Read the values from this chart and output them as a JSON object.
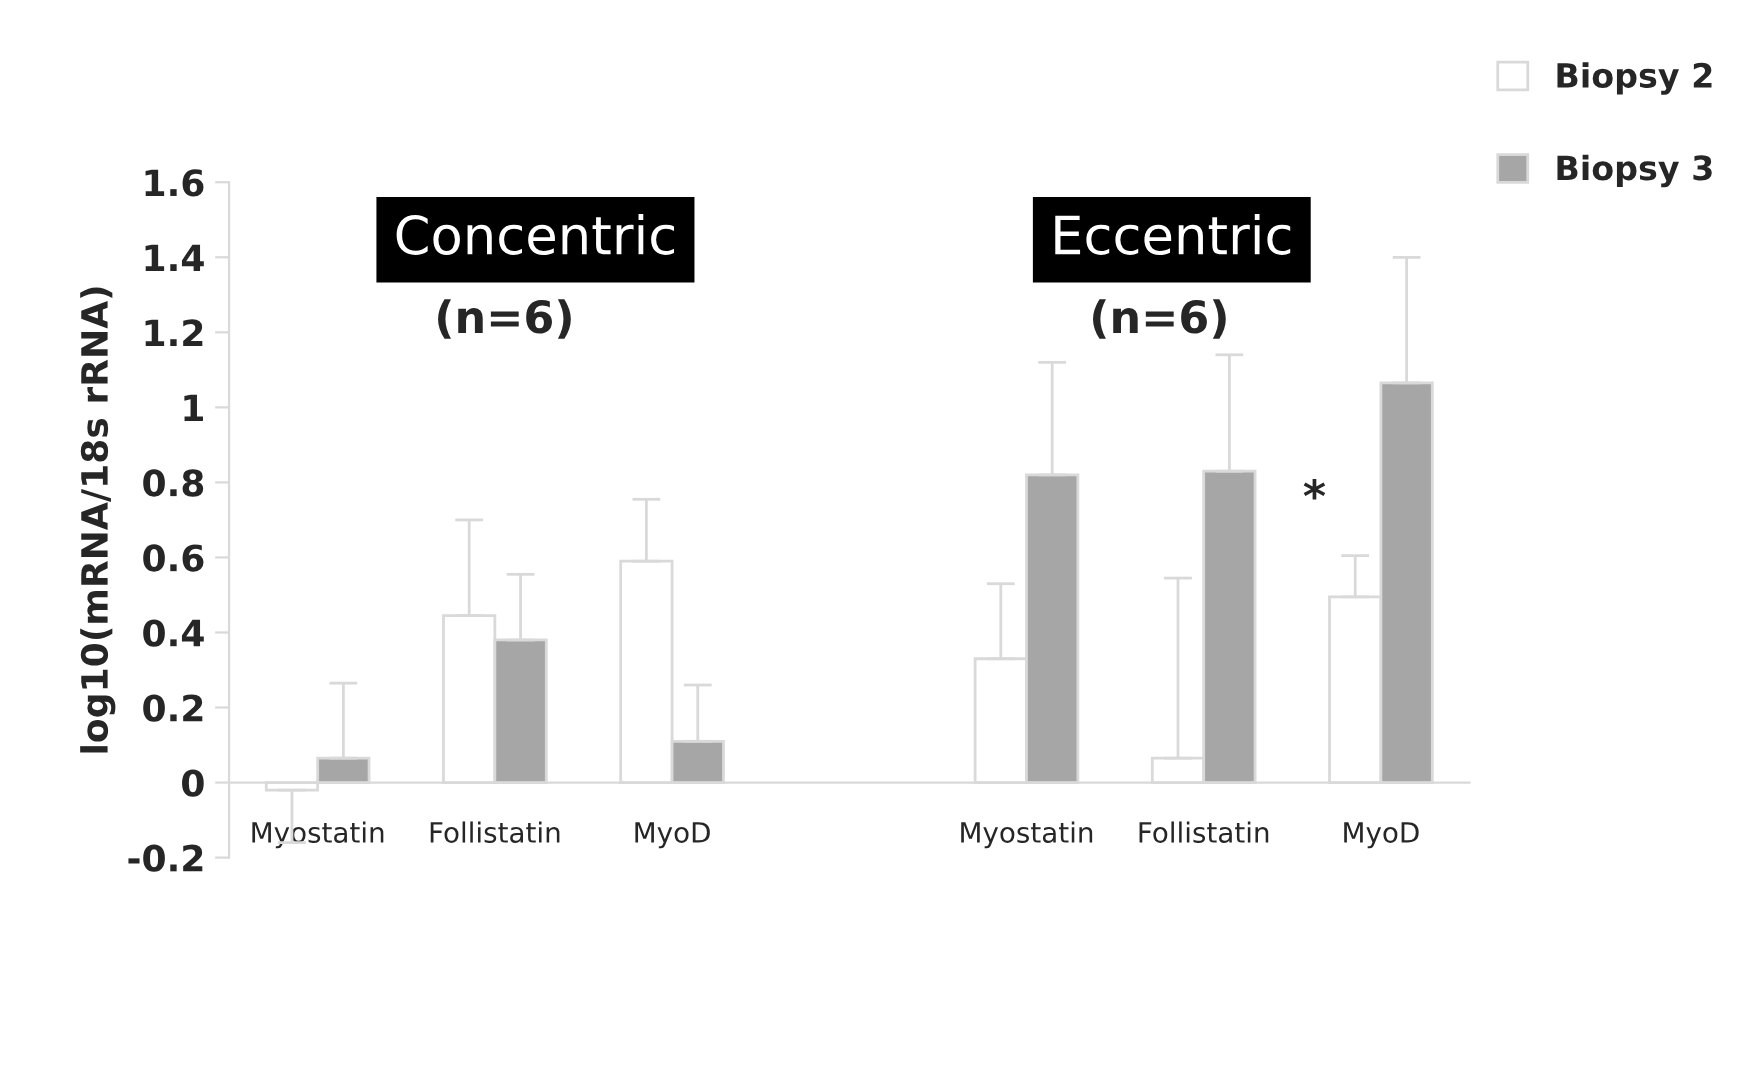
{
  "chart_data": {
    "type": "bar",
    "ylabel": "log10(mRNA/18s rRNA)",
    "categories": [
      "Myostatin",
      "Follistatin",
      "MyoD",
      null,
      "Myostatin",
      "Follistatin",
      "MyoD"
    ],
    "series": [
      {
        "name": "Biopsy 2",
        "color": "#ffffff",
        "values": [
          -0.02,
          0.445,
          0.59,
          null,
          0.33,
          0.065,
          0.495
        ],
        "errors": [
          [
            -0.16,
            -0.02
          ],
          [
            0.445,
            0.7
          ],
          [
            0.59,
            0.755
          ],
          null,
          [
            0.33,
            0.53
          ],
          [
            0.065,
            0.545
          ],
          [
            0.495,
            0.605
          ]
        ]
      },
      {
        "name": "Biopsy 3",
        "color": "#a6a6a6",
        "values": [
          0.065,
          0.38,
          0.11,
          null,
          0.82,
          0.83,
          1.065
        ],
        "errors": [
          [
            0.065,
            0.265
          ],
          [
            0.38,
            0.555
          ],
          [
            0.11,
            0.26
          ],
          null,
          [
            0.82,
            1.12
          ],
          [
            0.83,
            1.14
          ],
          [
            1.065,
            1.4
          ]
        ]
      }
    ],
    "ylim": [
      -0.2,
      1.6
    ],
    "yticks": [
      {
        "value": -0.2,
        "label": "-0.2"
      },
      0,
      0.2,
      0.4,
      0.6,
      0.8,
      1,
      1.2,
      1.4,
      1.6
    ],
    "annotations": [
      "Concentric",
      "(n=6)",
      "Eccentric",
      "(n=6)",
      "*"
    ],
    "grid": false,
    "legend": "top right"
  }
}
